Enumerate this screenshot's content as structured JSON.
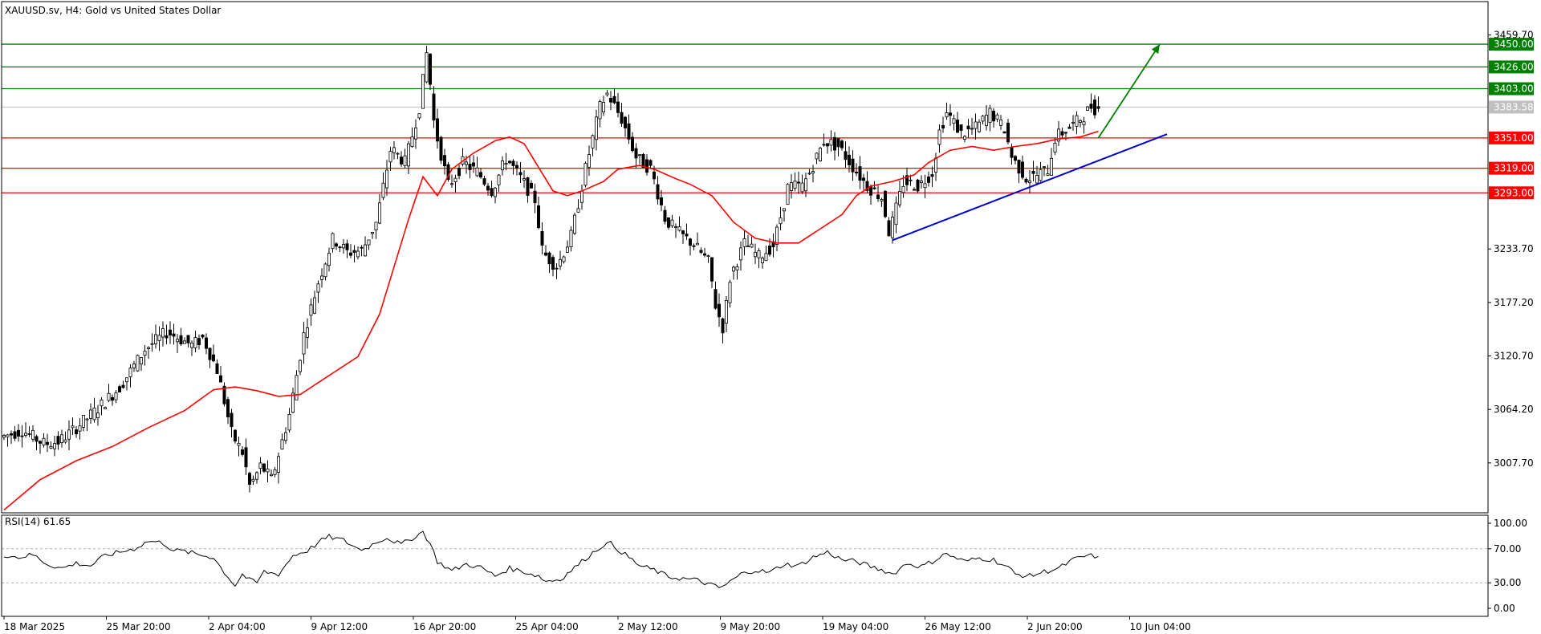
{
  "header": {
    "title": "XAUUSD.sv, H4:  Gold vs United States Dollar"
  },
  "colors": {
    "support": "#ff0000",
    "resistance": "#008000",
    "trendline": "#0000cc",
    "ma": "#ff0000",
    "arrow": "#008000",
    "candle": "#000000",
    "current_price": "#c0c0c0"
  },
  "chart_data": [
    {
      "type": "candlestick",
      "title": "XAUUSD.sv, H4:  Gold vs United States Dollar",
      "ylim": [
        2955,
        3495
      ],
      "y_ticks": [
        3459.7,
        3233.7,
        3177.2,
        3120.7,
        3064.2,
        3007.7
      ],
      "y_tick_labels": [
        "3459.70",
        "3233.70",
        "3177.20",
        "3120.70",
        "3064.20",
        "3007.70"
      ],
      "x_tick_labels": [
        "18 Mar 2025",
        "25 Mar 20:00",
        "2 Apr 04:00",
        "9 Apr 12:00",
        "16 Apr 20:00",
        "25 Apr 04:00",
        "2 May 12:00",
        "9 May 20:00",
        "19 May 04:00",
        "26 May 12:00",
        "2 Jun 20:00",
        "10 Jun 04:00"
      ],
      "price_path": [
        [
          0,
          3035
        ],
        [
          6,
          3042
        ],
        [
          12,
          3028
        ],
        [
          16,
          3030
        ],
        [
          20,
          3042
        ],
        [
          26,
          3062
        ],
        [
          33,
          3088
        ],
        [
          40,
          3128
        ],
        [
          46,
          3146
        ],
        [
          53,
          3132
        ],
        [
          56,
          3140
        ],
        [
          60,
          3105
        ],
        [
          64,
          3038
        ],
        [
          67,
          3018
        ],
        [
          69,
          2982
        ],
        [
          72,
          3005
        ],
        [
          75,
          2990
        ],
        [
          80,
          3060
        ],
        [
          84,
          3145
        ],
        [
          88,
          3200
        ],
        [
          92,
          3245
        ],
        [
          96,
          3230
        ],
        [
          100,
          3232
        ],
        [
          104,
          3262
        ],
        [
          108,
          3340
        ],
        [
          112,
          3325
        ],
        [
          116,
          3385
        ],
        [
          118,
          3443
        ],
        [
          120,
          3365
        ],
        [
          124,
          3300
        ],
        [
          128,
          3325
        ],
        [
          132,
          3315
        ],
        [
          136,
          3295
        ],
        [
          140,
          3330
        ],
        [
          144,
          3308
        ],
        [
          148,
          3285
        ],
        [
          150,
          3230
        ],
        [
          154,
          3215
        ],
        [
          158,
          3248
        ],
        [
          162,
          3320
        ],
        [
          166,
          3385
        ],
        [
          168,
          3398
        ],
        [
          172,
          3370
        ],
        [
          176,
          3330
        ],
        [
          180,
          3318
        ],
        [
          184,
          3265
        ],
        [
          188,
          3250
        ],
        [
          192,
          3238
        ],
        [
          196,
          3220
        ],
        [
          198,
          3172
        ],
        [
          200,
          3150
        ],
        [
          202,
          3205
        ],
        [
          206,
          3240
        ],
        [
          210,
          3225
        ],
        [
          214,
          3238
        ],
        [
          218,
          3300
        ],
        [
          222,
          3300
        ],
        [
          224,
          3315
        ],
        [
          228,
          3348
        ],
        [
          232,
          3342
        ],
        [
          236,
          3320
        ],
        [
          240,
          3300
        ],
        [
          244,
          3288
        ],
        [
          246,
          3250
        ],
        [
          250,
          3305
        ],
        [
          254,
          3300
        ],
        [
          258,
          3315
        ],
        [
          260,
          3360
        ],
        [
          262,
          3378
        ],
        [
          266,
          3355
        ],
        [
          270,
          3362
        ],
        [
          274,
          3378
        ],
        [
          278,
          3360
        ],
        [
          280,
          3330
        ],
        [
          284,
          3308
        ],
        [
          286,
          3310
        ],
        [
          290,
          3318
        ],
        [
          292,
          3352
        ],
        [
          296,
          3362
        ],
        [
          300,
          3375
        ],
        [
          302,
          3385
        ],
        [
          303,
          3382
        ]
      ],
      "series": [
        {
          "name": "MA",
          "values": [
            [
              0,
              2958
            ],
            [
              10,
              2990
            ],
            [
              20,
              3010
            ],
            [
              30,
              3025
            ],
            [
              40,
              3045
            ],
            [
              50,
              3063
            ],
            [
              58,
              3085
            ],
            [
              64,
              3088
            ],
            [
              70,
              3084
            ],
            [
              76,
              3078
            ],
            [
              82,
              3080
            ],
            [
              90,
              3100
            ],
            [
              98,
              3120
            ],
            [
              104,
              3165
            ],
            [
              108,
              3215
            ],
            [
              112,
              3265
            ],
            [
              116,
              3310
            ],
            [
              120,
              3290
            ],
            [
              124,
              3318
            ],
            [
              130,
              3335
            ],
            [
              136,
              3348
            ],
            [
              140,
              3352
            ],
            [
              144,
              3345
            ],
            [
              148,
              3320
            ],
            [
              152,
              3295
            ],
            [
              156,
              3290
            ],
            [
              160,
              3295
            ],
            [
              166,
              3305
            ],
            [
              170,
              3318
            ],
            [
              176,
              3322
            ],
            [
              180,
              3318
            ],
            [
              186,
              3308
            ],
            [
              190,
              3302
            ],
            [
              196,
              3290
            ],
            [
              202,
              3262
            ],
            [
              208,
              3245
            ],
            [
              214,
              3240
            ],
            [
              220,
              3240
            ],
            [
              226,
              3255
            ],
            [
              232,
              3270
            ],
            [
              236,
              3290
            ],
            [
              240,
              3300
            ],
            [
              246,
              3305
            ],
            [
              252,
              3312
            ],
            [
              256,
              3325
            ],
            [
              262,
              3338
            ],
            [
              268,
              3342
            ],
            [
              274,
              3338
            ],
            [
              280,
              3342
            ],
            [
              286,
              3345
            ],
            [
              292,
              3350
            ],
            [
              298,
              3352
            ],
            [
              303,
              3358
            ]
          ]
        }
      ],
      "levels": [
        {
          "value": 3450.0,
          "label": "3450.00",
          "kind": "resistance"
        },
        {
          "value": 3426.0,
          "label": "3426.00",
          "kind": "resistance"
        },
        {
          "value": 3403.0,
          "label": "3403.00",
          "kind": "resistance"
        },
        {
          "value": 3351.0,
          "label": "3351.00",
          "kind": "support"
        },
        {
          "value": 3319.0,
          "label": "3319.00",
          "kind": "support"
        },
        {
          "value": 3293.0,
          "label": "3293.00",
          "kind": "support"
        }
      ],
      "current_price": {
        "value": 3383.58,
        "label": "3383.58"
      },
      "trendline": {
        "from": [
          246,
          3243
        ],
        "to": [
          322,
          3355
        ]
      },
      "arrow": {
        "from": [
          303,
          3351
        ],
        "to": [
          320,
          3450
        ]
      }
    },
    {
      "type": "line",
      "title": "RSI(14) 61.65",
      "ylim": [
        0,
        100
      ],
      "y_ticks": [
        100,
        70,
        30,
        0
      ],
      "y_tick_labels": [
        "100.00",
        "70.00",
        "30.00",
        "0.00"
      ],
      "series": [
        {
          "name": "RSI(14)",
          "values": [
            [
              0,
              63
            ],
            [
              4,
              60
            ],
            [
              8,
              63
            ],
            [
              12,
              52
            ],
            [
              16,
              47
            ],
            [
              20,
              53
            ],
            [
              24,
              50
            ],
            [
              28,
              62
            ],
            [
              32,
              66
            ],
            [
              36,
              70
            ],
            [
              40,
              79
            ],
            [
              44,
              77
            ],
            [
              47,
              68
            ],
            [
              50,
              67
            ],
            [
              54,
              63
            ],
            [
              58,
              60
            ],
            [
              60,
              48
            ],
            [
              62,
              37
            ],
            [
              64,
              27
            ],
            [
              66,
              40
            ],
            [
              68,
              33
            ],
            [
              70,
              30
            ],
            [
              72,
              43
            ],
            [
              76,
              40
            ],
            [
              80,
              62
            ],
            [
              84,
              68
            ],
            [
              88,
              80
            ],
            [
              90,
              84
            ],
            [
              94,
              80
            ],
            [
              98,
              70
            ],
            [
              100,
              70
            ],
            [
              104,
              80
            ],
            [
              106,
              83
            ],
            [
              110,
              75
            ],
            [
              114,
              85
            ],
            [
              116,
              90
            ],
            [
              118,
              76
            ],
            [
              120,
              55
            ],
            [
              124,
              44
            ],
            [
              128,
              52
            ],
            [
              132,
              48
            ],
            [
              136,
              38
            ],
            [
              140,
              47
            ],
            [
              144,
              43
            ],
            [
              148,
              38
            ],
            [
              150,
              32
            ],
            [
              154,
              34
            ],
            [
              158,
              48
            ],
            [
              162,
              62
            ],
            [
              166,
              75
            ],
            [
              168,
              76
            ],
            [
              172,
              63
            ],
            [
              176,
              50
            ],
            [
              180,
              45
            ],
            [
              184,
              37
            ],
            [
              188,
              35
            ],
            [
              192,
              33
            ],
            [
              196,
              27
            ],
            [
              198,
              24
            ],
            [
              200,
              28
            ],
            [
              204,
              40
            ],
            [
              208,
              45
            ],
            [
              212,
              42
            ],
            [
              216,
              52
            ],
            [
              220,
              50
            ],
            [
              224,
              60
            ],
            [
              228,
              66
            ],
            [
              232,
              57
            ],
            [
              236,
              55
            ],
            [
              240,
              49
            ],
            [
              244,
              44
            ],
            [
              246,
              40
            ],
            [
              250,
              53
            ],
            [
              254,
              49
            ],
            [
              258,
              57
            ],
            [
              260,
              64
            ],
            [
              262,
              62
            ],
            [
              266,
              55
            ],
            [
              270,
              59
            ],
            [
              274,
              57
            ],
            [
              278,
              48
            ],
            [
              280,
              40
            ],
            [
              284,
              38
            ],
            [
              288,
              43
            ],
            [
              292,
              47
            ],
            [
              296,
              57
            ],
            [
              300,
              62
            ],
            [
              303,
              61
            ]
          ]
        }
      ]
    }
  ]
}
